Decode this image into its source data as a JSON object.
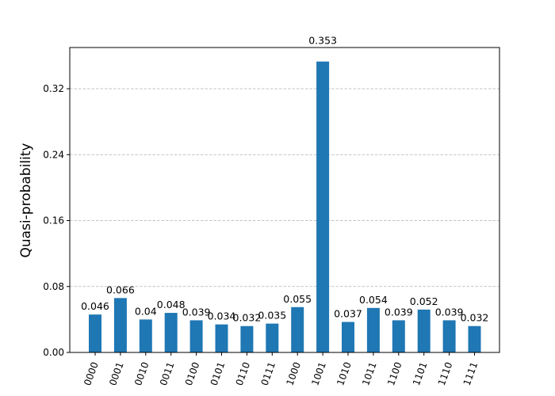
{
  "chart_data": {
    "type": "bar",
    "title": "",
    "xlabel": "",
    "ylabel": "Quasi-probability",
    "ylim": [
      0,
      0.37
    ],
    "yticks": [
      "0.00",
      "0.08",
      "0.16",
      "0.24",
      "0.32"
    ],
    "grid": "y-dashed",
    "legend": "none",
    "bar_color": "#1f77b4",
    "categories": [
      "0000",
      "0001",
      "0010",
      "0011",
      "0100",
      "0101",
      "0110",
      "0111",
      "1000",
      "1001",
      "1010",
      "1011",
      "1100",
      "1101",
      "1110",
      "1111"
    ],
    "values": [
      0.046,
      0.066,
      0.04,
      0.048,
      0.039,
      0.034,
      0.032,
      0.035,
      0.055,
      0.353,
      0.037,
      0.054,
      0.039,
      0.052,
      0.039,
      0.032
    ],
    "data_labels": [
      "0.046",
      "0.066",
      "0.04",
      "0.048",
      "0.039",
      "0.034",
      "0.032",
      "0.035",
      "0.055",
      "0.353",
      "0.037",
      "0.054",
      "0.039",
      "0.052",
      "0.039",
      "0.032"
    ]
  }
}
